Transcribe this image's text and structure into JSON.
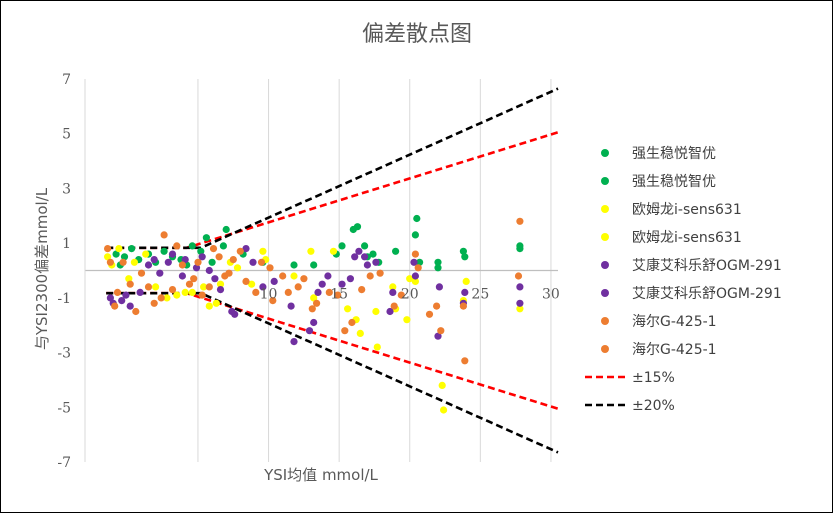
{
  "chart_data": {
    "type": "scatter",
    "title": "偏差散点图",
    "xlabel": "YSI均值 mmol/L",
    "ylabel": "与YSI2300偏差mmol/L",
    "xlim": [
      -3,
      30.5
    ],
    "ylim": [
      -7,
      7
    ],
    "x_ticks": [
      5,
      10,
      15,
      20,
      25,
      30
    ],
    "x_tick_labels": [
      "",
      "10",
      "15",
      "20",
      "25",
      "30"
    ],
    "y_ticks": [
      7,
      5,
      3,
      1,
      -1,
      -3,
      -5,
      -7
    ],
    "y_tick_labels": [
      "7",
      "5",
      "3",
      "1",
      "-1",
      "-3",
      "-5",
      "-7"
    ],
    "grid": "vertical",
    "legend": "right",
    "series": [
      {
        "name": "强生稳悦智优",
        "color": "#00b050",
        "points": [
          [
            -0.8,
            0.6
          ],
          [
            -0.2,
            0.5
          ],
          [
            0.3,
            0.8
          ],
          [
            1.5,
            0.6
          ],
          [
            2.6,
            0.7
          ],
          [
            3.8,
            0.4
          ],
          [
            4.6,
            0.9
          ],
          [
            5.6,
            1.2
          ],
          [
            7,
            1.5
          ],
          [
            8.2,
            0.6
          ],
          [
            9.6,
            0.3
          ],
          [
            13.2,
            0.2
          ],
          [
            15.2,
            0.9
          ],
          [
            16.3,
            1.6
          ],
          [
            16.8,
            0.9
          ],
          [
            17.4,
            0.6
          ],
          [
            19,
            0.7
          ],
          [
            20.5,
            1.9
          ],
          [
            20.7,
            0.3
          ],
          [
            22,
            0.3
          ],
          [
            23.9,
            0.5
          ],
          [
            27.8,
            0.9
          ]
        ]
      },
      {
        "name": "强生稳悦智优",
        "color": "#00b050",
        "points": [
          [
            -0.5,
            0.2
          ],
          [
            0.8,
            0.4
          ],
          [
            2,
            0.3
          ],
          [
            3.2,
            0.5
          ],
          [
            4.2,
            0.2
          ],
          [
            5.2,
            0.7
          ],
          [
            6,
            0.3
          ],
          [
            6.8,
            0.9
          ],
          [
            11.8,
            0.2
          ],
          [
            14.8,
            0.6
          ],
          [
            16,
            1.5
          ],
          [
            17,
            0.5
          ],
          [
            17.8,
            0.3
          ],
          [
            20.4,
            1.3
          ],
          [
            22,
            0.1
          ],
          [
            23.8,
            0.7
          ],
          [
            27.8,
            0.8
          ]
        ]
      },
      {
        "name": "欧姆龙i-sens631",
        "color": "#ffff00",
        "points": [
          [
            -1.4,
            0.5
          ],
          [
            -0.6,
            0.8
          ],
          [
            0.5,
            0.3
          ],
          [
            2,
            -0.6
          ],
          [
            3.5,
            -0.9
          ],
          [
            4.6,
            -0.8
          ],
          [
            5.8,
            -1.3
          ],
          [
            6.6,
            -0.5
          ],
          [
            7.8,
            0.1
          ],
          [
            9.6,
            0.7
          ],
          [
            11.8,
            -0.2
          ],
          [
            13.2,
            -1
          ],
          [
            14.6,
            0.7
          ],
          [
            16.2,
            -1.8
          ],
          [
            17.7,
            -2.8
          ],
          [
            18.8,
            -0.6
          ],
          [
            19.8,
            -1.8
          ],
          [
            20.4,
            -0.4
          ],
          [
            22.3,
            -4.2
          ],
          [
            24,
            -0.4
          ],
          [
            27.8,
            -1.4
          ]
        ]
      },
      {
        "name": "欧姆龙i-sens631",
        "color": "#ffff00",
        "points": [
          [
            -1.1,
            0.2
          ],
          [
            0.1,
            -0.3
          ],
          [
            1.3,
            0.6
          ],
          [
            2.8,
            -1
          ],
          [
            4.1,
            -0.8
          ],
          [
            5.4,
            -0.6
          ],
          [
            6.3,
            -1.2
          ],
          [
            7.3,
            0.3
          ],
          [
            8.8,
            -0.5
          ],
          [
            9.8,
            0.4
          ],
          [
            13,
            0.7
          ],
          [
            15.6,
            -1.4
          ],
          [
            16.5,
            -2.3
          ],
          [
            17.6,
            -1.5
          ],
          [
            19,
            -1.4
          ],
          [
            20,
            -0.3
          ],
          [
            22.4,
            -5.1
          ],
          [
            23.8,
            -1.1
          ]
        ]
      },
      {
        "name": "艾康艾科乐舒OGM-291",
        "color": "#7030a0",
        "points": [
          [
            -1.2,
            -1
          ],
          [
            -0.4,
            -1.1
          ],
          [
            0.2,
            -1.3
          ],
          [
            1.5,
            0.2
          ],
          [
            2.3,
            -0.1
          ],
          [
            3.2,
            0.6
          ],
          [
            4.1,
            0.4
          ],
          [
            5.3,
            0.5
          ],
          [
            6.2,
            -0.3
          ],
          [
            7.4,
            -1.5
          ],
          [
            8.4,
            0.8
          ],
          [
            9.6,
            -0.6
          ],
          [
            11.8,
            -2.6
          ],
          [
            13.2,
            -1.9
          ],
          [
            13.5,
            -0.8
          ],
          [
            14.2,
            -0.2
          ],
          [
            15.8,
            -0.3
          ],
          [
            16.4,
            0.7
          ],
          [
            16.8,
            0.5
          ],
          [
            17.6,
            0.3
          ],
          [
            18.8,
            -0.8
          ],
          [
            20.3,
            0.3
          ],
          [
            22.1,
            -0.6
          ],
          [
            23.9,
            -0.8
          ],
          [
            27.8,
            -0.6
          ]
        ]
      },
      {
        "name": "艾康艾科乐舒OGM-291",
        "color": "#7030a0",
        "points": [
          [
            -1,
            -1.2
          ],
          [
            -0.1,
            -0.9
          ],
          [
            0.9,
            -0.8
          ],
          [
            1.9,
            0.4
          ],
          [
            2.9,
            0.3
          ],
          [
            3.9,
            -0.2
          ],
          [
            4.9,
            0.1
          ],
          [
            5.8,
            0
          ],
          [
            6.6,
            -0.7
          ],
          [
            7.6,
            -1.6
          ],
          [
            8.9,
            0.3
          ],
          [
            10.4,
            -0.4
          ],
          [
            11.6,
            -1.3
          ],
          [
            12.9,
            -2.2
          ],
          [
            13.8,
            -0.5
          ],
          [
            15.2,
            -0.5
          ],
          [
            16.1,
            0.5
          ],
          [
            17,
            0.2
          ],
          [
            18.6,
            -1.5
          ],
          [
            20.4,
            -0.2
          ],
          [
            22,
            -2.4
          ],
          [
            23.8,
            -1.2
          ],
          [
            27.8,
            -1.2
          ]
        ]
      },
      {
        "name": "海尔G-425-1",
        "color": "#ed7d31",
        "points": [
          [
            -1.4,
            0.8
          ],
          [
            -0.9,
            -1.3
          ],
          [
            0.2,
            -0.5
          ],
          [
            1,
            -0.1
          ],
          [
            1.9,
            -1.2
          ],
          [
            2.6,
            1.3
          ],
          [
            3.2,
            -0.7
          ],
          [
            3.9,
            0.2
          ],
          [
            4.7,
            -0.3
          ],
          [
            5.3,
            -0.9
          ],
          [
            6.1,
            0.8
          ],
          [
            6.9,
            -0.2
          ],
          [
            7.5,
            0.4
          ],
          [
            8.4,
            -0.4
          ],
          [
            9.5,
            0.3
          ],
          [
            10.3,
            -1.1
          ],
          [
            11.4,
            -0.8
          ],
          [
            12.5,
            -0.3
          ],
          [
            13.4,
            -1.2
          ],
          [
            14.9,
            -0.9
          ],
          [
            15.9,
            -1.9
          ],
          [
            17.2,
            -0.2
          ],
          [
            18.9,
            -1.3
          ],
          [
            20.4,
            0.6
          ],
          [
            21.9,
            -1.3
          ],
          [
            23.9,
            -3.3
          ],
          [
            27.8,
            1.8
          ],
          [
            27.7,
            -0.2
          ]
        ]
      },
      {
        "name": "海尔G-425-1",
        "color": "#ed7d31",
        "points": [
          [
            -1.2,
            0.3
          ],
          [
            -0.7,
            -0.8
          ],
          [
            -0.3,
            0.3
          ],
          [
            0.6,
            -1.5
          ],
          [
            1.5,
            -0.6
          ],
          [
            2.4,
            -1
          ],
          [
            3.5,
            0.9
          ],
          [
            4.4,
            -0.5
          ],
          [
            5,
            0.3
          ],
          [
            5.8,
            -0.6
          ],
          [
            6.5,
            0.5
          ],
          [
            7.2,
            -0.1
          ],
          [
            8,
            0.7
          ],
          [
            9.1,
            -0.8
          ],
          [
            10.1,
            0.1
          ],
          [
            11,
            -0.2
          ],
          [
            12.1,
            -0.6
          ],
          [
            13.1,
            -1.4
          ],
          [
            14.3,
            -0.8
          ],
          [
            15.4,
            -2.2
          ],
          [
            16.6,
            -0.7
          ],
          [
            17.9,
            -0.1
          ],
          [
            19.4,
            -0.9
          ],
          [
            20.6,
            0.1
          ],
          [
            21.4,
            -1.6
          ],
          [
            22.2,
            -2.2
          ],
          [
            23.8,
            -1.3
          ]
        ]
      }
    ],
    "reference_lines": [
      {
        "name": "±15%",
        "color": "#ff0000",
        "segments": [
          [
            [
              -1.5,
              0.83
            ],
            [
              4.2,
              0.83
            ],
            [
              30.5,
              5.05
            ]
          ],
          [
            [
              -1.5,
              -0.83
            ],
            [
              4.2,
              -0.83
            ],
            [
              30.5,
              -5.05
            ]
          ]
        ]
      },
      {
        "name": "±20%",
        "color": "#000000",
        "segments": [
          [
            [
              -1.5,
              0.83
            ],
            [
              5.2,
              0.83
            ],
            [
              30.5,
              6.65
            ]
          ],
          [
            [
              -1.5,
              -0.83
            ],
            [
              5.2,
              -0.83
            ],
            [
              30.5,
              -6.65
            ]
          ]
        ]
      }
    ]
  }
}
